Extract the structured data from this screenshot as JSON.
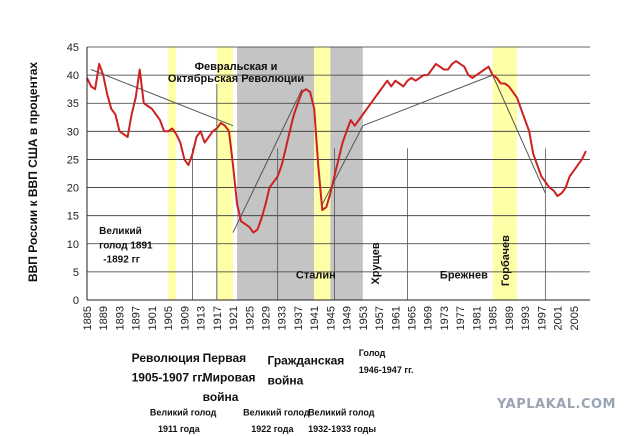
{
  "chart_data": {
    "type": "line",
    "title": "",
    "xlabel": "",
    "ylabel": "ВВП России к ВВП США в процентах",
    "xlim": [
      1885,
      2009
    ],
    "ylim": [
      0,
      45
    ],
    "y_ticks": [
      0,
      5,
      10,
      15,
      20,
      25,
      30,
      35,
      40,
      45
    ],
    "x_ticks": [
      1885,
      1889,
      1893,
      1897,
      1901,
      1905,
      1909,
      1913,
      1917,
      1921,
      1925,
      1929,
      1933,
      1937,
      1941,
      1945,
      1949,
      1953,
      1957,
      1961,
      1965,
      1969,
      1973,
      1977,
      1981,
      1985,
      1989,
      1993,
      1997,
      2001,
      2005
    ],
    "grid": "horizontal",
    "line_color": "#cc2222",
    "series": [
      {
        "x": [
          1885,
          1886,
          1887,
          1888,
          1889,
          1890,
          1891,
          1892,
          1893,
          1894,
          1895,
          1896,
          1897,
          1898,
          1899,
          1900,
          1901,
          1902,
          1903,
          1904,
          1905,
          1906,
          1907,
          1908,
          1909,
          1910,
          1911,
          1912,
          1913,
          1914,
          1915,
          1916,
          1917,
          1918,
          1919,
          1920,
          1921,
          1922,
          1923,
          1924,
          1925,
          1926,
          1927,
          1928,
          1929,
          1930,
          1931,
          1932,
          1933,
          1934,
          1935,
          1936,
          1937,
          1938,
          1939,
          1940,
          1941,
          1942,
          1943,
          1944,
          1945,
          1946,
          1947,
          1948,
          1949,
          1950,
          1951,
          1952,
          1953,
          1954,
          1955,
          1956,
          1957,
          1958,
          1959,
          1960,
          1961,
          1962,
          1963,
          1964,
          1965,
          1966,
          1967,
          1968,
          1969,
          1970,
          1971,
          1972,
          1973,
          1974,
          1975,
          1976,
          1977,
          1978,
          1979,
          1980,
          1981,
          1982,
          1983,
          1984,
          1985,
          1986,
          1987,
          1988,
          1989,
          1990,
          1991,
          1992,
          1993,
          1994,
          1995,
          1996,
          1997,
          1998,
          1999,
          2000,
          2001,
          2002,
          2003,
          2004,
          2005,
          2006,
          2007,
          2008
        ],
        "y": [
          39.5,
          38,
          37.5,
          42,
          40,
          36.5,
          34,
          33,
          30,
          29.5,
          29,
          33,
          36,
          41,
          35,
          34.5,
          34,
          33,
          32,
          30,
          30,
          30.5,
          29.5,
          28,
          25,
          24,
          26,
          29,
          30,
          28,
          29,
          30,
          30.5,
          31.5,
          31,
          30,
          24,
          17,
          14,
          13.5,
          13,
          12,
          12.5,
          14.5,
          17,
          20,
          21,
          22,
          24,
          27,
          30,
          33,
          35,
          37,
          37.5,
          37,
          34,
          24,
          16,
          16.5,
          19,
          22,
          25,
          28,
          30,
          32,
          31,
          32,
          33,
          34,
          35,
          36,
          37,
          38,
          39,
          38,
          39,
          38.5,
          38,
          39,
          39.5,
          39,
          39.5,
          40,
          40,
          41,
          42,
          41.5,
          41,
          41,
          42,
          42.5,
          42,
          41.5,
          40,
          39.5,
          40,
          40.5,
          41,
          41.5,
          40,
          39.5,
          38.5,
          38.5,
          38,
          37,
          36,
          34,
          32,
          30,
          26,
          24,
          22,
          21,
          20,
          19.5,
          18.5,
          19,
          20,
          22,
          23,
          24,
          25,
          26.5
        ]
      }
    ],
    "trend_lines": [
      {
        "x": [
          1886,
          1921
        ],
        "y": [
          41,
          31
        ]
      },
      {
        "x": [
          1921,
          1938
        ],
        "y": [
          12,
          37.5
        ]
      },
      {
        "x": [
          1943,
          1953
        ],
        "y": [
          17,
          31
        ]
      },
      {
        "x": [
          1953,
          1985
        ],
        "y": [
          31,
          40
        ]
      },
      {
        "x": [
          1985,
          1998
        ],
        "y": [
          40,
          19
        ]
      }
    ],
    "shaded_periods": [
      {
        "from": 1905,
        "to": 1907,
        "color": "#ffffa8"
      },
      {
        "from": 1917,
        "to": 1921,
        "color": "#ffffa8"
      },
      {
        "from": 1922,
        "to": 1941,
        "color": "#c4c4c4"
      },
      {
        "from": 1941,
        "to": 1945,
        "color": "#ffffa8"
      },
      {
        "from": 1945,
        "to": 1953,
        "color": "#c4c4c4"
      },
      {
        "from": 1985,
        "to": 1991,
        "color": "#ffffa8"
      }
    ],
    "vertical_markers": [
      1911,
      1932,
      1946,
      1964,
      1998
    ],
    "top_annotation": {
      "lines": [
        "Февральская и",
        "Октябрьская Революции"
      ],
      "x": 1917
    },
    "labels": [
      {
        "text": "Великий",
        "x": 1888,
        "y": 11.7,
        "size": 10
      },
      {
        "text": "голод 1891",
        "x": 1888,
        "y": 9.2,
        "size": 10
      },
      {
        "text": "-1892 гг",
        "x": 1889,
        "y": 6.7,
        "size": 10
      },
      {
        "text": "Сталин",
        "x": 1936.5,
        "y": 3.8,
        "size": 11
      },
      {
        "text": "Брежнев",
        "x": 1972,
        "y": 3.8,
        "size": 11
      },
      {
        "text": "Революция",
        "x": 1896,
        "y": -11,
        "size": 12
      },
      {
        "text": "1905-1907 гг.",
        "x": 1896,
        "y": -14.5,
        "size": 12
      },
      {
        "text": "Первая",
        "x": 1913.5,
        "y": -11,
        "size": 12
      },
      {
        "text": "Мировая",
        "x": 1913.5,
        "y": -14.5,
        "size": 12
      },
      {
        "text": "война",
        "x": 1913.5,
        "y": -18,
        "size": 12
      },
      {
        "text": "Гражданская",
        "x": 1929.5,
        "y": -11.5,
        "size": 12
      },
      {
        "text": "война",
        "x": 1929.5,
        "y": -15,
        "size": 12
      },
      {
        "text": "Голод",
        "x": 1952,
        "y": -10,
        "size": 9
      },
      {
        "text": "1946-1947 гг.",
        "x": 1952,
        "y": -13,
        "size": 9
      },
      {
        "text": "Великий голод",
        "x": 1900.5,
        "y": -20.5,
        "size": 9
      },
      {
        "text": "1911 года",
        "x": 1902.5,
        "y": -23.5,
        "size": 9
      },
      {
        "text": "Великий голод",
        "x": 1923.5,
        "y": -20.5,
        "size": 9
      },
      {
        "text": "1922 года",
        "x": 1925.5,
        "y": -23.5,
        "size": 9
      },
      {
        "text": "Великий голод",
        "x": 1939.5,
        "y": -20.5,
        "size": 9
      },
      {
        "text": "1932-1933 годы",
        "x": 1939.5,
        "y": -23.5,
        "size": 9
      }
    ],
    "vertical_labels": [
      {
        "text": "Хрущев",
        "x": 1957,
        "y": 6.5
      },
      {
        "text": "Горбачев",
        "x": 1989,
        "y": 7
      }
    ]
  },
  "watermark": "YAPLAKAL.COM"
}
